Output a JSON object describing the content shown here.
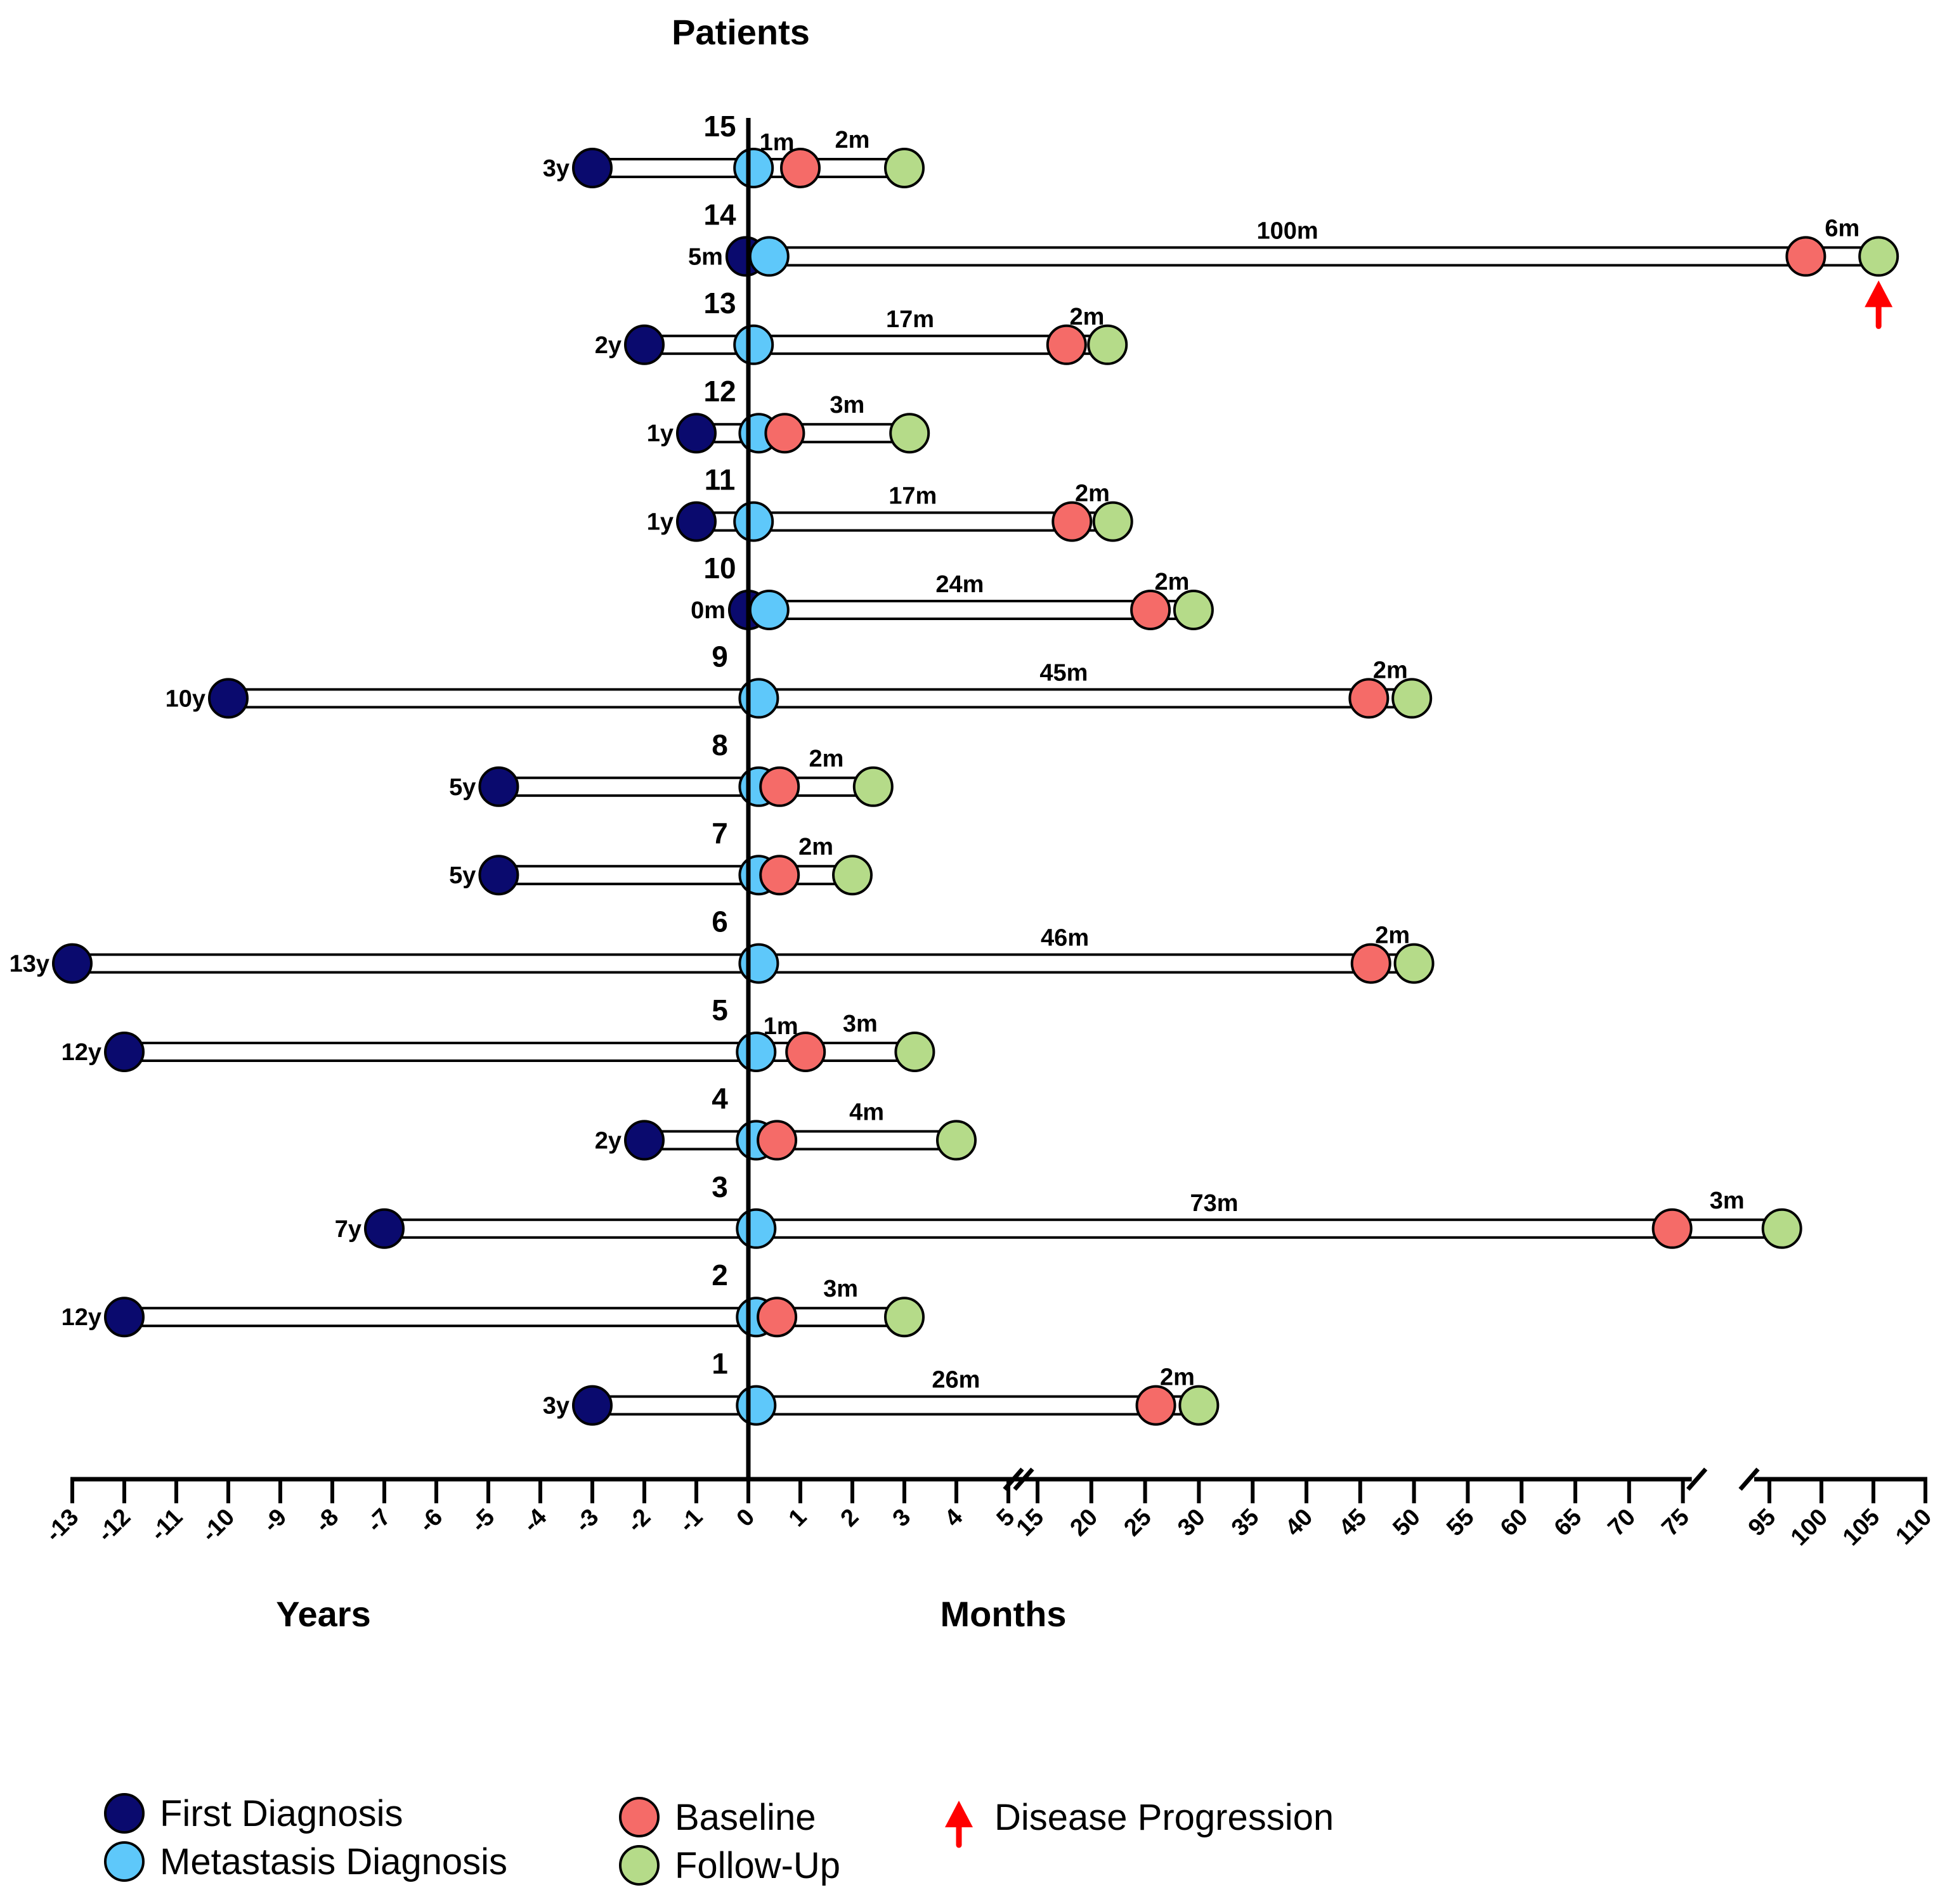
{
  "chart_data": {
    "type": "timeline",
    "title": "Patients",
    "xlabel_left": "Years",
    "xlabel_right": "Months",
    "year_ticks": [
      -13,
      -12,
      -11,
      -10,
      -9,
      -8,
      -7,
      -6,
      -5,
      -4,
      -3,
      -2,
      -1,
      0
    ],
    "month_ticks_a": [
      1,
      2,
      3,
      4,
      5
    ],
    "month_ticks_b": [
      15,
      20,
      25,
      30,
      35,
      40,
      45,
      50,
      55,
      60,
      65,
      70,
      75
    ],
    "month_ticks_c": [
      95,
      100,
      105,
      110
    ],
    "tick_labels": [
      "-13",
      "-12",
      "-11",
      "-10",
      "-9",
      "-8",
      "-7",
      "-6",
      "-5",
      "-4",
      "-3",
      "-2",
      "-1",
      "0",
      "1",
      "2",
      "3",
      "4",
      "5",
      "15",
      "20",
      "25",
      "30",
      "35",
      "40",
      "45",
      "50",
      "55",
      "60",
      "65",
      "70",
      "75",
      "95",
      "100",
      "105",
      "110"
    ],
    "colors": {
      "first_diagnosis": "#0a0a6e",
      "metastasis_diagnosis": "#5ec8fa",
      "baseline": "#f56b68",
      "follow_up": "#b5db89",
      "progression": "#ff0000"
    },
    "patients": [
      {
        "id": "15",
        "first_year": -3,
        "first_label": "3y",
        "meta": 0.1,
        "baseline": 1.0,
        "followup": 3.0,
        "gap1_label": "1m",
        "gap2_label": "2m",
        "progression": false
      },
      {
        "id": "14",
        "first_year": -0.05,
        "first_label": "5m",
        "meta": 0.4,
        "baseline": 98.5,
        "followup": 105.5,
        "gap1_label": "100m",
        "gap2_label": "6m",
        "progression": true
      },
      {
        "id": "13",
        "first_year": -2,
        "first_label": "2y",
        "meta": 0.1,
        "baseline": 17.7,
        "followup": 21.5,
        "gap1_label": "17m",
        "gap2_label": "2m",
        "progression": false
      },
      {
        "id": "12",
        "first_year": -1,
        "first_label": "1y",
        "meta": 0.2,
        "baseline": 0.7,
        "followup": 3.1,
        "gap1_label": "",
        "gap2_label": "3m",
        "progression": false
      },
      {
        "id": "11",
        "first_year": -1,
        "first_label": "1y",
        "meta": 0.1,
        "baseline": 18.2,
        "followup": 22.0,
        "gap1_label": "17m",
        "gap2_label": "2m",
        "progression": false
      },
      {
        "id": "10",
        "first_year": 0,
        "first_label": "0m",
        "meta": 0.4,
        "baseline": 25.5,
        "followup": 29.5,
        "gap1_label": "24m",
        "gap2_label": "2m",
        "progression": false
      },
      {
        "id": "9",
        "first_year": -10,
        "first_label": "10y",
        "meta": 0.2,
        "baseline": 45.8,
        "followup": 49.8,
        "gap1_label": "45m",
        "gap2_label": "2m",
        "progression": false
      },
      {
        "id": "8",
        "first_year": -4.8,
        "first_label": "5y",
        "meta": 0.2,
        "baseline": 0.6,
        "followup": 2.4,
        "gap1_label": "",
        "gap2_label": "2m",
        "progression": false
      },
      {
        "id": "7",
        "first_year": -4.8,
        "first_label": "5y",
        "meta": 0.2,
        "baseline": 0.6,
        "followup": 2.0,
        "gap1_label": "",
        "gap2_label": "2m",
        "progression": false
      },
      {
        "id": "6",
        "first_year": -13,
        "first_label": "13y",
        "meta": 0.2,
        "baseline": 46.0,
        "followup": 50.0,
        "gap1_label": "46m",
        "gap2_label": "2m",
        "progression": false
      },
      {
        "id": "5",
        "first_year": -12,
        "first_label": "12y",
        "meta": 0.15,
        "baseline": 1.1,
        "followup": 3.2,
        "gap1_label": "1m",
        "gap2_label": "3m",
        "progression": false
      },
      {
        "id": "4",
        "first_year": -2,
        "first_label": "2y",
        "meta": 0.15,
        "baseline": 0.55,
        "followup": 4.0,
        "gap1_label": "",
        "gap2_label": "4m",
        "progression": false
      },
      {
        "id": "3",
        "first_year": -7,
        "first_label": "7y",
        "meta": 0.15,
        "baseline": 74.0,
        "followup": 96.2,
        "gap1_label": "73m",
        "gap2_label": "3m",
        "progression": false
      },
      {
        "id": "2",
        "first_year": -12,
        "first_label": "12y",
        "meta": 0.15,
        "baseline": 0.55,
        "followup": 3.0,
        "gap1_label": "",
        "gap2_label": "3m",
        "progression": false
      },
      {
        "id": "1",
        "first_year": -3,
        "first_label": "3y",
        "meta": 0.15,
        "baseline": 26.0,
        "followup": 30.0,
        "gap1_label": "26m",
        "gap2_label": "2m",
        "progression": false
      }
    ],
    "legend": [
      {
        "key": "first_diagnosis",
        "label": "First Diagnosis"
      },
      {
        "key": "metastasis_diagnosis",
        "label": "Metastasis Diagnosis"
      },
      {
        "key": "baseline",
        "label": "Baseline"
      },
      {
        "key": "follow_up",
        "label": "Follow-Up"
      },
      {
        "key": "progression",
        "label": "Disease Progression"
      }
    ]
  }
}
